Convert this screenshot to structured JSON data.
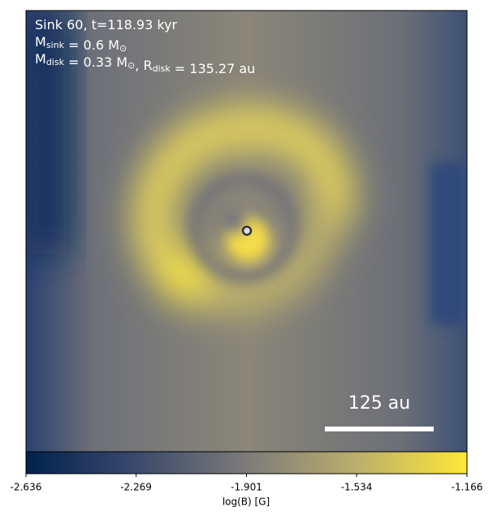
{
  "chart_data": {
    "type": "heatmap",
    "annotations": [
      [
        {
          "t": "Sink 60, t=118.93 kyr"
        }
      ],
      [
        {
          "t": "M"
        },
        {
          "sub": "sink"
        },
        {
          "t": " = 0.6 M"
        },
        {
          "sub": "⊙"
        }
      ],
      [
        {
          "t": "M"
        },
        {
          "sub": "disk"
        },
        {
          "t": " = 0.33 M"
        },
        {
          "sub": "⊙"
        },
        {
          "t": ", R"
        },
        {
          "sub": "disk"
        },
        {
          "t": " = 135.27 au"
        }
      ]
    ],
    "scale_bar": "125 au",
    "colorbar": {
      "label": "log(B) [G]",
      "lim": [
        -2.636,
        -1.166
      ],
      "ticks": [
        -2.636,
        -2.269,
        -1.901,
        -1.534,
        -1.166
      ],
      "colormap": [
        "#00224e",
        "#3b496c",
        "#7c7b78",
        "#bcae6c",
        "#fee838"
      ]
    }
  }
}
